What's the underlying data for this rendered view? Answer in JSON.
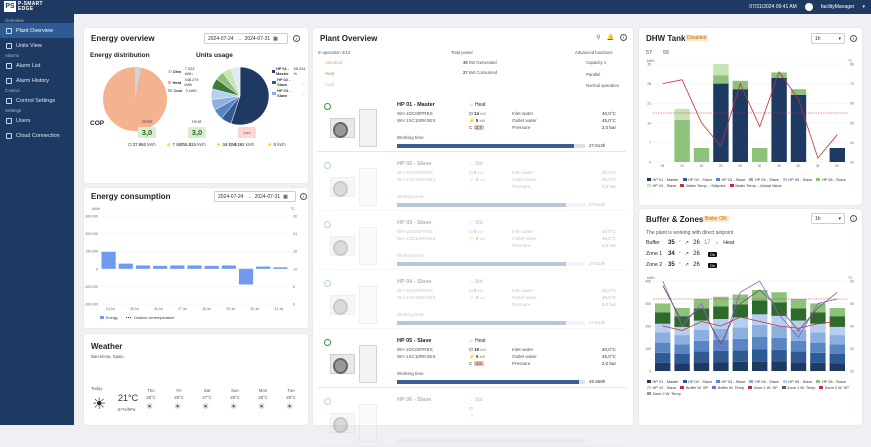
{
  "app": {
    "logo_line1": "P-SMART",
    "logo_line2": "EDGE",
    "datetime": "07/31/2024 09:41 AM",
    "user": "facilityManager"
  },
  "sidebar": {
    "sec_overview": "Overview",
    "sec_alarms": "Alarms",
    "sec_control": "Control",
    "sec_settings": "Settings",
    "items": [
      "Plant Overview",
      "Units View",
      "Alarm List",
      "Alarm History",
      "Control Settings",
      "Users",
      "Cloud Connection"
    ]
  },
  "energy_overview": {
    "title": "Energy overview",
    "date_from": "2024-07-24",
    "date_to": "2024-07-31",
    "dist_title": "Energy distribution",
    "units_title": "Units usage",
    "dist_legend": [
      {
        "name": "Dhw",
        "value": "7.023 kWh",
        "color": "#cfd4db"
      },
      {
        "name": "Heat",
        "value": "348.279 kWh",
        "color": "#f3b38e"
      },
      {
        "name": "Cool",
        "value": "0 kWh",
        "color": "#9ec2ec"
      }
    ],
    "units_legend": [
      {
        "name": "HP 01 - Master",
        "value": "55.244 %",
        "color": "#1e3a63"
      },
      {
        "name": "HP 02 - Slave",
        "value": "...",
        "color": "#2f5b95"
      },
      {
        "name": "HP 03 - Slave",
        "value": "...",
        "color": "#8bb0e0"
      }
    ],
    "cop_title": "COP",
    "cop_labels": [
      "DHW",
      "Heat",
      "Cool"
    ],
    "cop_values": [
      "3,0",
      "3,0",
      "---"
    ],
    "cop_rows": [
      {
        "a": "27.552",
        "au": "kWh",
        "b": "7",
        "bu": "kWh"
      },
      {
        "a": "15.824",
        "au": "kWh",
        "b": "34",
        "bu": "kWh"
      },
      {
        "a": "5.262",
        "au": "kWh",
        "b": "0",
        "bu": "kWh"
      }
    ]
  },
  "energy_consumption": {
    "title": "Energy consumption",
    "date_from": "2024-07-24",
    "date_to": "2024-07-31",
    "unit_left": "kWh",
    "unit_right": "°C",
    "legend_energy": "Energy",
    "legend_temp": "Outdoor air temperature"
  },
  "weather": {
    "title": "Weather",
    "location": "Barcelona, Spain",
    "today": "Today",
    "temp": "21°C",
    "humidity": "57%/hPa",
    "days": [
      {
        "d": "Thu",
        "t": "28°C"
      },
      {
        "d": "Fri",
        "t": "28°C"
      },
      {
        "d": "Sat",
        "t": "27°C"
      },
      {
        "d": "Sun",
        "t": "28°C"
      },
      {
        "d": "Mon",
        "t": "28°C"
      },
      {
        "d": "Tue",
        "t": "28°C"
      }
    ]
  },
  "plant": {
    "title": "Plant Overview",
    "in_operation": "In operation 4/10",
    "total_power": "Total power",
    "advanced": "Advanced functions",
    "modes": [
      "Standard",
      "Heat",
      "Cool"
    ],
    "generated": "30",
    "generated_unit": "kW Generated",
    "consumed": "27",
    "consumed_unit": "kW Consumed",
    "adv": [
      "Capacity 1",
      "Parallel",
      "Normal operation"
    ],
    "units": [
      {
        "name": "HP 01 - Master",
        "l1": "WH 1DC00PRES",
        "l2": "WH 1XC10RKSES",
        "mode": "Heat",
        "m1": "14",
        "m1u": "kW",
        "m2": "5",
        "m2u": "kW",
        "cop": "2,7",
        "p": [
          "Inlet water",
          "Outlet water",
          "Pressure"
        ],
        "pv": [
          "40,0°C",
          "45,0°C",
          "2,0 bar"
        ],
        "wt": "Working time",
        "hours": "27.613h",
        "fill": 0.94
      },
      {
        "name": "HP 02 - Slave",
        "l1": "WH 1DC00PRES",
        "l2": "WH 1XC10RKSES",
        "mode": "Std",
        "m1": "0",
        "m1u": "kW",
        "m2": "0",
        "m2u": "kW",
        "cop": "",
        "p": [
          "Inlet water",
          "Outlet water",
          "Pressure"
        ],
        "pv": [
          "40,0°C",
          "45,0°C",
          "2,0 bar"
        ],
        "wt": "Working time",
        "hours": "27.613h",
        "fill": 0.9
      },
      {
        "name": "HP 03 - Slave",
        "l1": "WH 1DC00PRES",
        "l2": "WH 1XC10RKSES",
        "mode": "Std",
        "m1": "0",
        "m1u": "kW",
        "m2": "0",
        "m2u": "kW",
        "cop": "",
        "p": [
          "Inlet water",
          "Outlet water",
          "Pressure"
        ],
        "pv": [
          "40,0°C",
          "45,0°C",
          "2,0 bar"
        ],
        "wt": "Working time",
        "hours": "27.613h",
        "fill": 0.9
      },
      {
        "name": "HP 04 - Slave",
        "l1": "WH 1DC00PRES",
        "l2": "WH 1XC10RKSES",
        "mode": "Std",
        "m1": "0",
        "m1u": "kW",
        "m2": "0",
        "m2u": "kW",
        "cop": "",
        "p": [
          "Inlet water",
          "Outlet water",
          "Pressure"
        ],
        "pv": [
          "40,0°C",
          "45,0°C",
          "2,0 bar"
        ],
        "wt": "Working time",
        "hours": "27.613h",
        "fill": 0.9
      },
      {
        "name": "HP 05 - Slave",
        "l1": "WH 1DC00PRES",
        "l2": "WH 1XC10RKSES",
        "mode": "Heat",
        "m1": "19",
        "m1u": "kW",
        "m2": "5",
        "m2u": "kW",
        "cop": "3,6",
        "p": [
          "Inlet water",
          "Outlet water",
          "Pressure"
        ],
        "pv": [
          "40,0°C",
          "45,0°C",
          "2,0 bar"
        ],
        "wt": "Working time",
        "hours": "46.559h",
        "fill": 0.97
      },
      {
        "name": "HP 06 - Slave",
        "l1": "",
        "l2": "",
        "mode": "Std",
        "m1": "",
        "m1u": "",
        "m2": "",
        "m2u": "",
        "cop": "",
        "p": [
          "",
          "",
          ""
        ],
        "pv": [
          "",
          "",
          ""
        ],
        "wt": "",
        "hours": "",
        "fill": 0
      }
    ]
  },
  "dhw": {
    "title": "DHW Tank",
    "badge": "Disabled",
    "sel": "1h",
    "t1": "57",
    "t2": "55",
    "unit_left": "kWh",
    "unit_right": "°C",
    "legend": [
      "HP 01 - Master",
      "HP 02 - Slave",
      "HP 03 - Slave",
      "HP 04 - Slave",
      "HP 05 - Slave",
      "HP 06 - Slave",
      "HP 10 - Slave",
      "Water Temp. - Setpoint",
      "Water Temp. - Actual Value"
    ]
  },
  "buffer": {
    "title": "Buffer & Zones",
    "badge": "Boiler ON",
    "sel": "1h",
    "note": "The plant is working with direct setpoint",
    "rows": [
      {
        "n": "Buffer",
        "a": "35",
        "b": "26",
        "c": "17",
        "mode": "Heat"
      },
      {
        "n": "Zone 1",
        "a": "34",
        "b": "26",
        "mode": "On"
      },
      {
        "n": "Zone 2",
        "a": "35",
        "b": "26",
        "mode": "On"
      }
    ],
    "unit_left": "kWh",
    "unit_right": "°C",
    "legend": [
      "HP 01 - Master",
      "HP 02 - Slave",
      "HP 03 - Slave",
      "HP 04 - Slave",
      "HP 05 - Slave",
      "HP 06 - Slave",
      "HP 10 - Slave",
      "Buffer W. SP",
      "Buffer W. Temp",
      "Zone 1 W. SP",
      "Zone 1 W. Temp",
      "Zone 2 W. SP",
      "Zone 2 W. Temp"
    ]
  }
}
